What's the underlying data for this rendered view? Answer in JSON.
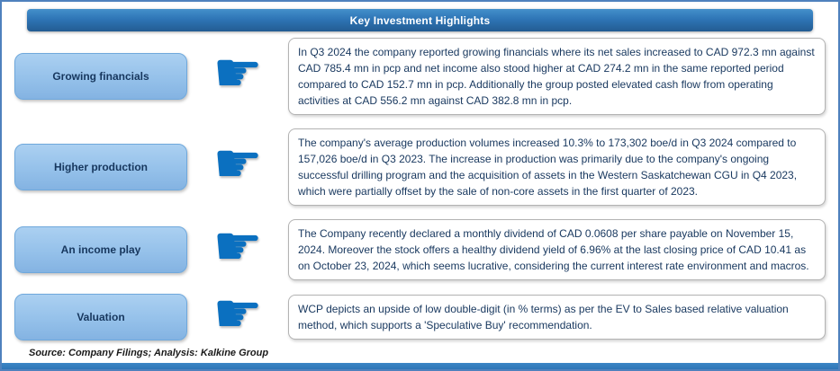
{
  "page": {
    "title": "Key Investment Highlights",
    "source_note": "Source: Company Filings; Analysis: Kalkine Group"
  },
  "icons": {
    "pointing_hand": "☛"
  },
  "colors": {
    "accent_blue": "#2e75b6",
    "label_fill": "#95c1ea",
    "text_navy": "#17375e",
    "hand_blue": "#0b70c0",
    "frame_border": "#4f81bd",
    "box_border": "#b3b3b3"
  },
  "highlights": [
    {
      "label": "Growing financials",
      "text": "In Q3 2024 the company reported growing financials where its net sales increased to CAD 972.3 mn against CAD 785.4 mn in pcp and net income also stood higher at CAD 274.2 mn in the same reported period compared to CAD 152.7 mn in pcp. Additionally the group posted elevated cash flow from operating activities at CAD 556.2 mn against CAD 382.8 mn in pcp."
    },
    {
      "label": "Higher production",
      "text": "The company's average production volumes increased 10.3% to 173,302 boe/d in Q3 2024 compared to 157,026 boe/d in Q3 2023. The increase in production was primarily due to the company's ongoing successful drilling program and the acquisition of assets in the Western Saskatchewan CGU in Q4 2023, which were partially offset by the sale of non-core assets in the first quarter of 2023."
    },
    {
      "label": "An income play",
      "text": "The Company recently declared a monthly dividend of CAD 0.0608 per share payable on November 15, 2024. Moreover the stock offers a healthy dividend yield of 6.96% at the last closing price of CAD 10.41 as on October 23, 2024, which seems lucrative, considering the current interest rate environment and macros."
    },
    {
      "label": "Valuation",
      "text": "WCP depicts an upside of low double-digit (in % terms) as per the EV to Sales based relative valuation method, which supports a 'Speculative Buy' recommendation."
    }
  ]
}
